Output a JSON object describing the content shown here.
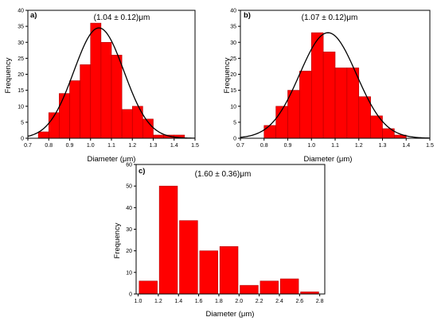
{
  "chart_data": [
    {
      "type": "bar",
      "panel": "a)",
      "annotation": "(1.04 ± 0.12)μm",
      "xlabel": "Diameter (μm)",
      "ylabel": "Frequency",
      "xlim": [
        0.7,
        1.5
      ],
      "ylim": [
        0,
        40
      ],
      "xticks": [
        0.7,
        0.8,
        0.9,
        1.0,
        1.1,
        1.2,
        1.3,
        1.4,
        1.5
      ],
      "yticks": [
        0,
        5,
        10,
        15,
        20,
        25,
        30,
        35,
        40
      ],
      "x_tick_labels": [
        "0.7",
        "0.8",
        "0.9",
        "1.0",
        "1.1",
        "1.2",
        "1.3",
        "1.4",
        "1.5"
      ],
      "y_tick_labels": [
        "0",
        "5",
        "10",
        "15",
        "20",
        "25",
        "30",
        "35",
        "40"
      ],
      "bin_width": 0.05,
      "x": [
        0.775,
        0.825,
        0.875,
        0.925,
        0.975,
        1.025,
        1.075,
        1.125,
        1.175,
        1.225,
        1.275,
        1.325,
        1.375,
        1.425
      ],
      "values": [
        2,
        8,
        14,
        18,
        23,
        36,
        30,
        26,
        9,
        10,
        6,
        1,
        1,
        1
      ],
      "fit": {
        "type": "gaussian",
        "mean": 1.04,
        "sigma": 0.12,
        "peak": 34.5
      }
    },
    {
      "type": "bar",
      "panel": "b)",
      "annotation": "(1.07 ± 0.12)μm",
      "xlabel": "Diameter (μm)",
      "ylabel": "Frequency",
      "xlim": [
        0.7,
        1.5
      ],
      "ylim": [
        0,
        40
      ],
      "xticks": [
        0.7,
        0.8,
        0.9,
        1.0,
        1.1,
        1.2,
        1.3,
        1.4,
        1.5
      ],
      "yticks": [
        0,
        5,
        10,
        15,
        20,
        25,
        30,
        35,
        40
      ],
      "x_tick_labels": [
        "0.7",
        "0.8",
        "0.9",
        "1.0",
        "1.1",
        "1.2",
        "1.3",
        "1.4",
        "1.5"
      ],
      "y_tick_labels": [
        "0",
        "5",
        "10",
        "15",
        "20",
        "25",
        "30",
        "35",
        "40"
      ],
      "bin_width": 0.05,
      "x": [
        0.825,
        0.875,
        0.925,
        0.975,
        1.025,
        1.075,
        1.125,
        1.175,
        1.225,
        1.275,
        1.325,
        1.375
      ],
      "values": [
        4,
        10,
        15,
        21,
        33,
        27,
        22,
        22,
        13,
        7,
        3,
        1
      ],
      "fit": {
        "type": "gaussian",
        "mean": 1.07,
        "sigma": 0.12,
        "peak": 33
      }
    },
    {
      "type": "bar",
      "panel": "c)",
      "annotation": "(1.60 ± 0.36)μm",
      "xlabel": "Diameter (μm)",
      "ylabel": "Frequency",
      "xlim": [
        0.98,
        2.85
      ],
      "ylim": [
        0,
        60
      ],
      "xticks": [
        1.0,
        1.2,
        1.4,
        1.6,
        1.8,
        2.0,
        2.2,
        2.4,
        2.6,
        2.8
      ],
      "yticks": [
        0,
        10,
        20,
        30,
        40,
        50,
        60
      ],
      "x_tick_labels": [
        "1.0",
        "1.2",
        "1.4",
        "1.6",
        "1.8",
        "2.0",
        "2.2",
        "2.4",
        "2.6",
        "2.8"
      ],
      "y_tick_labels": [
        "0",
        "10",
        "20",
        "30",
        "40",
        "50",
        "60"
      ],
      "bin_width": 0.18,
      "x": [
        1.1,
        1.3,
        1.5,
        1.7,
        1.9,
        2.1,
        2.3,
        2.5,
        2.7
      ],
      "values": [
        6,
        50,
        34,
        20,
        22,
        4,
        6,
        7,
        1
      ]
    }
  ]
}
